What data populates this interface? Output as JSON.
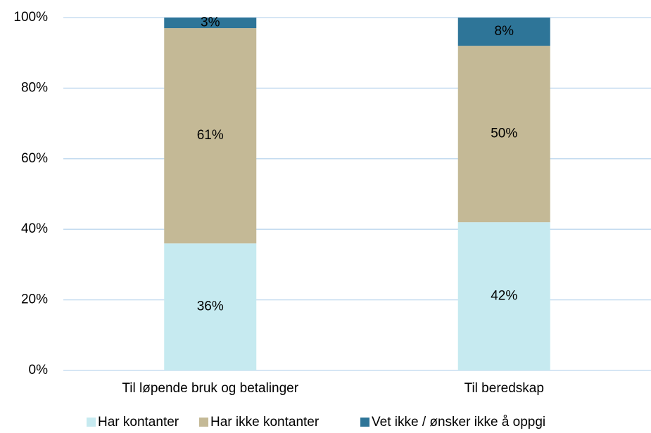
{
  "chart_data": {
    "type": "stacked_bar",
    "categories": [
      "Til løpende bruk og betalinger",
      "Til beredskap"
    ],
    "series": [
      {
        "name": "Har kontanter",
        "color": "#c6eaf0",
        "values": [
          36,
          42
        ],
        "value_labels": [
          "36%",
          "42%"
        ]
      },
      {
        "name": "Har ikke kontanter",
        "color": "#c4b996",
        "values": [
          61,
          50
        ],
        "value_labels": [
          "61%",
          "50%"
        ]
      },
      {
        "name": "Vet ikke / ønsker ikke å oppgi",
        "color": "#2e7598",
        "values": [
          3,
          8
        ],
        "value_labels": [
          "3%",
          "8%"
        ]
      }
    ],
    "ylim": [
      0,
      100
    ],
    "yticks": [
      {
        "value": 0,
        "label": "0%"
      },
      {
        "value": 20,
        "label": "20%"
      },
      {
        "value": 40,
        "label": "40%"
      },
      {
        "value": 60,
        "label": "60%"
      },
      {
        "value": 80,
        "label": "80%"
      },
      {
        "value": 100,
        "label": "100%"
      }
    ],
    "grid": true,
    "legend": "bottom"
  }
}
